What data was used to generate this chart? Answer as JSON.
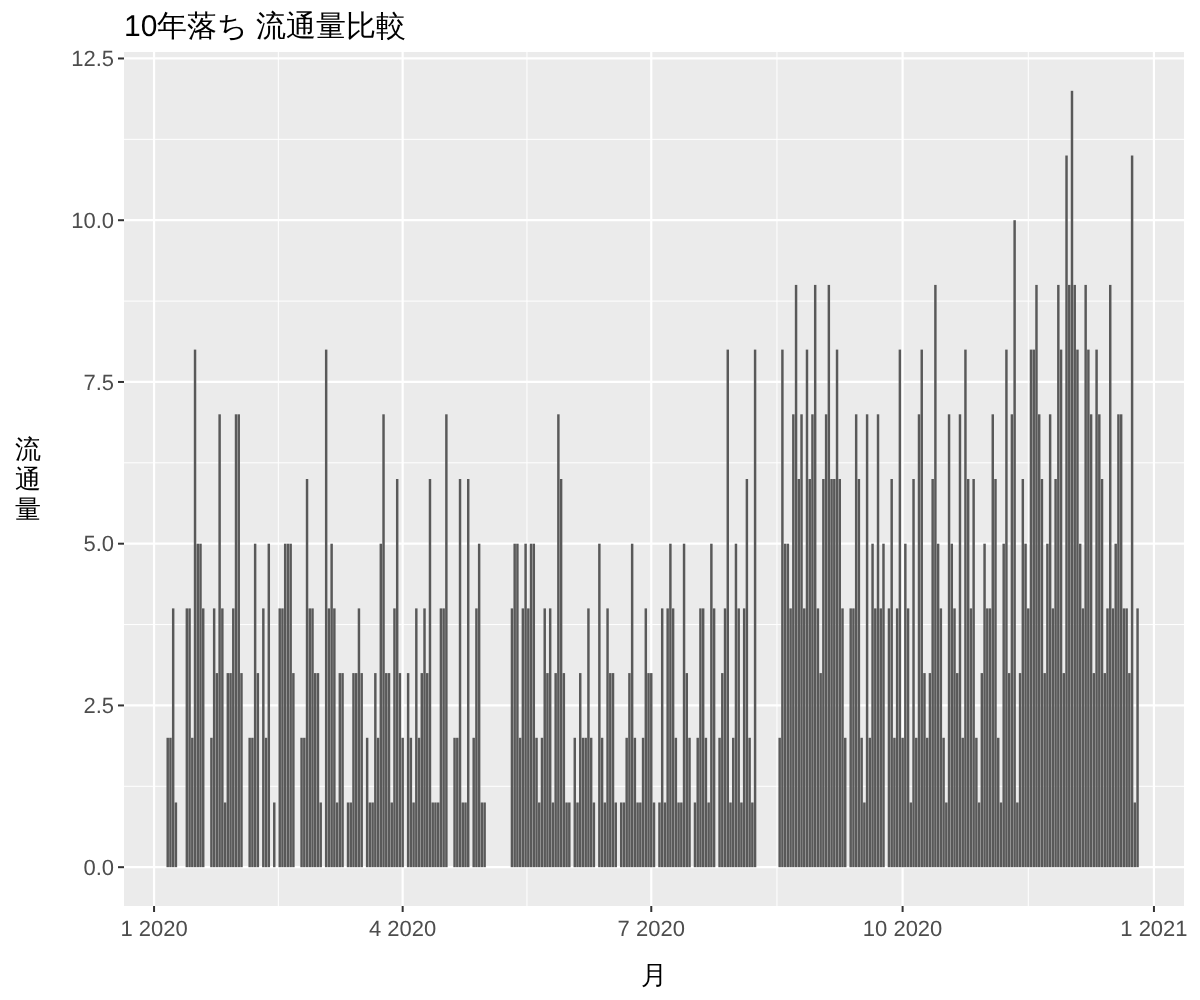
{
  "chart_data": {
    "type": "bar",
    "title": "10年落ち 流通量比較",
    "xlabel": "月",
    "ylabel": "流通量",
    "color": "#595959",
    "grid": true,
    "xlim": [
      "2019-12-21",
      "2021-01-12"
    ],
    "xticks": [
      {
        "value": "2020-01-01",
        "label": "1 2020"
      },
      {
        "value": "2020-04-01",
        "label": "4 2020"
      },
      {
        "value": "2020-07-01",
        "label": "7 2020"
      },
      {
        "value": "2020-10-01",
        "label": "10 2020"
      },
      {
        "value": "2021-01-01",
        "label": "1 2021"
      }
    ],
    "ylim": [
      -0.6,
      12.6
    ],
    "yticks": [
      {
        "value": 0,
        "label": "0.0"
      },
      {
        "value": 2.5,
        "label": "2.5"
      },
      {
        "value": 5,
        "label": "5.0"
      },
      {
        "value": 7.5,
        "label": "7.5"
      },
      {
        "value": 10,
        "label": "10.0"
      },
      {
        "value": 12.5,
        "label": "12.5"
      }
    ],
    "x": [
      "2020-01-06",
      "2020-01-07",
      "2020-01-08",
      "2020-01-09",
      "2020-01-10",
      "2020-01-11",
      "2020-01-12",
      "2020-01-13",
      "2020-01-14",
      "2020-01-15",
      "2020-01-16",
      "2020-01-17",
      "2020-01-18",
      "2020-01-19",
      "2020-01-20",
      "2020-01-21",
      "2020-01-22",
      "2020-01-23",
      "2020-01-24",
      "2020-01-25",
      "2020-01-26",
      "2020-01-27",
      "2020-01-28",
      "2020-01-29",
      "2020-01-30",
      "2020-01-31",
      "2020-02-01",
      "2020-02-02",
      "2020-02-03",
      "2020-02-04",
      "2020-02-05",
      "2020-02-06",
      "2020-02-07",
      "2020-02-08",
      "2020-02-09",
      "2020-02-10",
      "2020-02-11",
      "2020-02-12",
      "2020-02-13",
      "2020-02-14",
      "2020-02-15",
      "2020-02-16",
      "2020-02-17",
      "2020-02-18",
      "2020-02-19",
      "2020-02-20",
      "2020-02-21",
      "2020-02-22",
      "2020-02-23",
      "2020-02-24",
      "2020-02-25",
      "2020-02-26",
      "2020-02-27",
      "2020-02-28",
      "2020-02-29",
      "2020-03-01",
      "2020-03-02",
      "2020-03-03",
      "2020-03-04",
      "2020-03-05",
      "2020-03-06",
      "2020-03-07",
      "2020-03-08",
      "2020-03-09",
      "2020-03-10",
      "2020-03-11",
      "2020-03-12",
      "2020-03-13",
      "2020-03-14",
      "2020-03-15",
      "2020-03-16",
      "2020-03-17",
      "2020-03-18",
      "2020-03-19",
      "2020-03-20",
      "2020-03-21",
      "2020-03-22",
      "2020-03-23",
      "2020-03-24",
      "2020-03-25",
      "2020-03-26",
      "2020-03-27",
      "2020-03-28",
      "2020-03-29",
      "2020-03-30",
      "2020-03-31",
      "2020-04-01",
      "2020-04-02",
      "2020-04-03",
      "2020-04-04",
      "2020-04-05",
      "2020-04-06",
      "2020-04-07",
      "2020-04-08",
      "2020-04-09",
      "2020-04-10",
      "2020-04-11",
      "2020-04-12",
      "2020-04-13",
      "2020-04-14",
      "2020-04-15",
      "2020-04-16",
      "2020-04-17",
      "2020-04-18",
      "2020-04-19",
      "2020-04-20",
      "2020-04-21",
      "2020-04-22",
      "2020-04-23",
      "2020-04-24",
      "2020-04-25",
      "2020-04-26",
      "2020-04-27",
      "2020-04-28",
      "2020-04-29",
      "2020-04-30",
      "2020-05-01",
      "2020-05-11",
      "2020-05-12",
      "2020-05-13",
      "2020-05-14",
      "2020-05-15",
      "2020-05-16",
      "2020-05-17",
      "2020-05-18",
      "2020-05-19",
      "2020-05-20",
      "2020-05-21",
      "2020-05-22",
      "2020-05-23",
      "2020-05-24",
      "2020-05-25",
      "2020-05-26",
      "2020-05-27",
      "2020-05-28",
      "2020-05-29",
      "2020-05-30",
      "2020-05-31",
      "2020-06-01",
      "2020-06-02",
      "2020-06-03",
      "2020-06-04",
      "2020-06-05",
      "2020-06-06",
      "2020-06-07",
      "2020-06-08",
      "2020-06-09",
      "2020-06-10",
      "2020-06-11",
      "2020-06-12",
      "2020-06-13",
      "2020-06-14",
      "2020-06-15",
      "2020-06-16",
      "2020-06-17",
      "2020-06-18",
      "2020-06-19",
      "2020-06-20",
      "2020-06-21",
      "2020-06-22",
      "2020-06-23",
      "2020-06-24",
      "2020-06-25",
      "2020-06-26",
      "2020-06-27",
      "2020-06-28",
      "2020-06-29",
      "2020-06-30",
      "2020-07-01",
      "2020-07-02",
      "2020-07-03",
      "2020-07-04",
      "2020-07-05",
      "2020-07-06",
      "2020-07-07",
      "2020-07-08",
      "2020-07-09",
      "2020-07-10",
      "2020-07-11",
      "2020-07-12",
      "2020-07-13",
      "2020-07-14",
      "2020-07-15",
      "2020-07-16",
      "2020-07-17",
      "2020-07-18",
      "2020-07-19",
      "2020-07-20",
      "2020-07-21",
      "2020-07-22",
      "2020-07-23",
      "2020-07-24",
      "2020-07-25",
      "2020-07-26",
      "2020-07-27",
      "2020-07-28",
      "2020-07-29",
      "2020-07-30",
      "2020-07-31",
      "2020-08-01",
      "2020-08-02",
      "2020-08-03",
      "2020-08-04",
      "2020-08-05",
      "2020-08-06",
      "2020-08-07",
      "2020-08-08",
      "2020-08-17",
      "2020-08-18",
      "2020-08-19",
      "2020-08-20",
      "2020-08-21",
      "2020-08-22",
      "2020-08-23",
      "2020-08-24",
      "2020-08-25",
      "2020-08-26",
      "2020-08-27",
      "2020-08-28",
      "2020-08-29",
      "2020-08-30",
      "2020-08-31",
      "2020-09-01",
      "2020-09-02",
      "2020-09-03",
      "2020-09-04",
      "2020-09-05",
      "2020-09-06",
      "2020-09-07",
      "2020-09-08",
      "2020-09-09",
      "2020-09-10",
      "2020-09-11",
      "2020-09-12",
      "2020-09-13",
      "2020-09-14",
      "2020-09-15",
      "2020-09-16",
      "2020-09-17",
      "2020-09-18",
      "2020-09-19",
      "2020-09-20",
      "2020-09-21",
      "2020-09-22",
      "2020-09-23",
      "2020-09-24",
      "2020-09-25",
      "2020-09-26",
      "2020-09-27",
      "2020-09-28",
      "2020-09-29",
      "2020-09-30",
      "2020-10-01",
      "2020-10-02",
      "2020-10-03",
      "2020-10-04",
      "2020-10-05",
      "2020-10-06",
      "2020-10-07",
      "2020-10-08",
      "2020-10-09",
      "2020-10-10",
      "2020-10-11",
      "2020-10-12",
      "2020-10-13",
      "2020-10-14",
      "2020-10-15",
      "2020-10-16",
      "2020-10-17",
      "2020-10-18",
      "2020-10-19",
      "2020-10-20",
      "2020-10-21",
      "2020-10-22",
      "2020-10-23",
      "2020-10-24",
      "2020-10-25",
      "2020-10-26",
      "2020-10-27",
      "2020-10-28",
      "2020-10-29",
      "2020-10-30",
      "2020-10-31",
      "2020-11-01",
      "2020-11-02",
      "2020-11-03",
      "2020-11-04",
      "2020-11-05",
      "2020-11-06",
      "2020-11-07",
      "2020-11-08",
      "2020-11-09",
      "2020-11-10",
      "2020-11-11",
      "2020-11-12",
      "2020-11-13",
      "2020-11-14",
      "2020-11-15",
      "2020-11-16",
      "2020-11-17",
      "2020-11-18",
      "2020-11-19",
      "2020-11-20",
      "2020-11-21",
      "2020-11-22",
      "2020-11-23",
      "2020-11-24",
      "2020-11-25",
      "2020-11-26",
      "2020-11-27",
      "2020-11-28",
      "2020-11-29",
      "2020-11-30",
      "2020-12-01",
      "2020-12-02",
      "2020-12-03",
      "2020-12-04",
      "2020-12-05",
      "2020-12-06",
      "2020-12-07",
      "2020-12-08",
      "2020-12-09",
      "2020-12-10",
      "2020-12-11",
      "2020-12-12",
      "2020-12-13",
      "2020-12-14",
      "2020-12-15",
      "2020-12-16",
      "2020-12-17",
      "2020-12-18",
      "2020-12-19",
      "2020-12-20",
      "2020-12-21",
      "2020-12-22",
      "2020-12-23",
      "2020-12-24",
      "2020-12-25",
      "2020-12-26"
    ],
    "values": [
      2,
      2,
      4,
      1,
      0,
      0,
      0,
      4,
      4,
      2,
      8,
      5,
      5,
      4,
      0,
      0,
      2,
      4,
      3,
      7,
      4,
      1,
      3,
      3,
      4,
      7,
      7,
      3,
      0,
      0,
      2,
      2,
      5,
      3,
      0,
      4,
      2,
      5,
      0,
      1,
      0,
      4,
      4,
      5,
      5,
      5,
      3,
      0,
      0,
      2,
      2,
      6,
      4,
      4,
      3,
      3,
      1,
      0,
      8,
      4,
      5,
      4,
      1,
      3,
      3,
      0,
      1,
      1,
      3,
      3,
      4,
      3,
      0,
      2,
      1,
      1,
      3,
      2,
      5,
      7,
      3,
      3,
      1,
      4,
      6,
      3,
      2,
      0,
      3,
      2,
      1,
      4,
      2,
      3,
      4,
      3,
      6,
      1,
      1,
      1,
      4,
      4,
      7,
      0,
      0,
      2,
      2,
      6,
      1,
      1,
      6,
      0,
      2,
      4,
      5,
      1,
      1,
      4,
      5,
      5,
      2,
      4,
      5,
      4,
      5,
      5,
      2,
      1,
      2,
      4,
      3,
      4,
      1,
      3,
      7,
      6,
      3,
      1,
      1,
      0,
      2,
      1,
      3,
      2,
      2,
      4,
      2,
      1,
      0,
      5,
      2,
      1,
      4,
      3,
      3,
      1,
      0,
      1,
      1,
      2,
      3,
      5,
      2,
      1,
      1,
      2,
      4,
      3,
      3,
      1,
      0,
      1,
      4,
      1,
      4,
      5,
      4,
      2,
      1,
      1,
      5,
      3,
      2,
      0,
      1,
      2,
      4,
      4,
      2,
      1,
      5,
      4,
      0,
      2,
      3,
      4,
      8,
      1,
      2,
      5,
      4,
      1,
      4,
      6,
      2,
      1,
      8,
      2,
      8,
      5,
      5,
      4,
      7,
      9,
      6,
      7,
      4,
      8,
      6,
      7,
      9,
      4,
      3,
      6,
      7,
      9,
      6,
      6,
      8,
      6,
      4,
      2,
      0,
      4,
      4,
      7,
      6,
      2,
      1,
      7,
      2,
      5,
      4,
      7,
      4,
      5,
      0,
      4,
      6,
      2,
      4,
      8,
      2,
      5,
      4,
      1,
      6,
      2,
      7,
      8,
      3,
      2,
      3,
      6,
      9,
      5,
      4,
      2,
      1,
      7,
      5,
      4,
      3,
      7,
      2,
      8,
      6,
      4,
      6,
      2,
      1,
      3,
      5,
      4,
      4,
      7,
      6,
      2,
      1,
      5,
      8,
      3,
      7,
      10,
      1,
      3,
      6,
      5,
      4,
      8,
      8,
      9,
      7,
      6,
      3,
      5,
      7,
      4,
      6,
      9,
      8,
      3,
      11,
      9,
      12,
      9,
      8,
      5,
      4,
      9,
      8,
      7,
      3,
      8,
      7,
      6,
      3,
      4,
      9,
      4,
      5,
      7,
      7,
      4,
      4,
      3,
      11,
      1,
      4
    ]
  }
}
